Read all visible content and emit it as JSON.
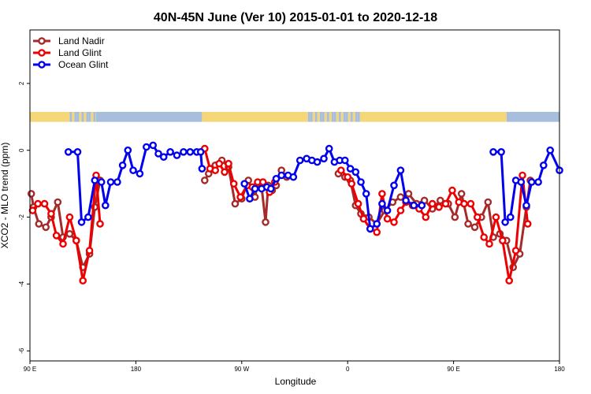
{
  "chart_data": {
    "type": "line",
    "title": "40N-45N June (Ver 10)   2015-01-01 to 2020-12-18",
    "xlabel": "Longitude",
    "ylabel": "XCO2 - MLO trend (ppm)",
    "xlim": [
      0,
      400
    ],
    "ylim": [
      -6.3,
      3.6
    ],
    "x_ticks": [
      {
        "value": 0,
        "label": "90 E"
      },
      {
        "value": 80,
        "label": "180"
      },
      {
        "value": 160,
        "label": "90 W"
      },
      {
        "value": 240,
        "label": "0"
      },
      {
        "value": 320,
        "label": "90 E"
      },
      {
        "value": 400,
        "label": "180"
      }
    ],
    "y_ticks": [
      {
        "value": 2,
        "label": "2"
      },
      {
        "value": 0,
        "label": "0"
      },
      {
        "value": -2,
        "label": "-2"
      },
      {
        "value": -4,
        "label": "-4"
      },
      {
        "value": -6,
        "label": "-6"
      }
    ],
    "legend_position": "top-left",
    "grid": false,
    "land_ocean_band": {
      "y_range": [
        0.85,
        1.15
      ],
      "land_color": "#f5d77a",
      "ocean_color": "#a7bfdc",
      "segments": [
        {
          "from": 0,
          "to": 30,
          "kind": "land"
        },
        {
          "from": 30,
          "to": 50,
          "kind": "mixed"
        },
        {
          "from": 50,
          "to": 130,
          "kind": "ocean"
        },
        {
          "from": 130,
          "to": 210,
          "kind": "land"
        },
        {
          "from": 210,
          "to": 250,
          "kind": "mixed"
        },
        {
          "from": 250,
          "to": 360,
          "kind": "land"
        },
        {
          "from": 360,
          "to": 400,
          "kind": "ocean"
        }
      ]
    },
    "series": [
      {
        "name": "Land Nadir",
        "color": "#a52a2a",
        "points": [
          [
            1,
            -1.3
          ],
          [
            2.7,
            -1.7
          ],
          [
            6.7,
            -2.2
          ],
          [
            12,
            -2.3
          ],
          [
            16,
            -2.0
          ],
          [
            21,
            -1.55
          ],
          [
            25,
            -2.6
          ],
          [
            30,
            -2.5
          ],
          [
            35,
            -2.7
          ],
          [
            40,
            -3.5
          ],
          [
            45,
            -3.1
          ],
          [
            49,
            -1.7
          ],
          [
            53,
            -0.9
          ],
          [
            132,
            -0.9
          ],
          [
            135,
            -0.7
          ],
          [
            140,
            -0.45
          ],
          [
            145,
            -0.3
          ],
          [
            150,
            -0.5
          ],
          [
            155,
            -1.6
          ],
          [
            160,
            -1.45
          ],
          [
            165,
            -0.9
          ],
          [
            170,
            -1.4
          ],
          [
            172,
            -1.0
          ],
          [
            175,
            -1.1
          ],
          [
            178,
            -2.15
          ],
          [
            180,
            -1.05
          ],
          [
            183,
            -1.2
          ],
          [
            186,
            -1.05
          ],
          [
            190,
            -0.6
          ],
          [
            194,
            -0.8
          ],
          [
            233,
            -0.7
          ],
          [
            238,
            -0.8
          ],
          [
            242,
            -0.9
          ],
          [
            246,
            -1.65
          ],
          [
            250,
            -1.9
          ],
          [
            256,
            -2.0
          ],
          [
            262,
            -2.2
          ],
          [
            268,
            -1.8
          ],
          [
            274,
            -1.55
          ],
          [
            280,
            -1.4
          ],
          [
            286,
            -1.3
          ],
          [
            292,
            -1.6
          ],
          [
            298,
            -1.5
          ],
          [
            304,
            -1.75
          ],
          [
            310,
            -1.5
          ],
          [
            316,
            -1.6
          ],
          [
            321,
            -2.0
          ],
          [
            326,
            -1.3
          ],
          [
            331,
            -2.2
          ],
          [
            336,
            -2.3
          ],
          [
            341,
            -2.0
          ],
          [
            346,
            -1.55
          ],
          [
            350,
            -2.6
          ],
          [
            355,
            -2.5
          ],
          [
            360,
            -2.7
          ],
          [
            365,
            -3.5
          ],
          [
            370,
            -3.1
          ],
          [
            375,
            -1.7
          ],
          [
            378,
            -0.9
          ]
        ]
      },
      {
        "name": "Land Glint",
        "color": "#ee0000",
        "points": [
          [
            2,
            -1.8
          ],
          [
            6,
            -1.6
          ],
          [
            11,
            -1.6
          ],
          [
            16,
            -1.9
          ],
          [
            20,
            -2.55
          ],
          [
            25,
            -2.8
          ],
          [
            30,
            -2.0
          ],
          [
            35,
            -2.7
          ],
          [
            40,
            -3.9
          ],
          [
            45,
            -3.0
          ],
          [
            50,
            -0.75
          ],
          [
            53,
            -2.2
          ],
          [
            132,
            0.05
          ],
          [
            136,
            -0.55
          ],
          [
            140,
            -0.6
          ],
          [
            143,
            -0.4
          ],
          [
            147,
            -0.65
          ],
          [
            150,
            -0.4
          ],
          [
            154,
            -1.0
          ],
          [
            159,
            -1.4
          ],
          [
            164,
            -1.05
          ],
          [
            168,
            -1.1
          ],
          [
            172,
            -0.95
          ],
          [
            176,
            -0.95
          ],
          [
            181,
            -1.25
          ],
          [
            185,
            -0.95
          ],
          [
            235,
            -0.6
          ],
          [
            240,
            -0.8
          ],
          [
            243,
            -1.0
          ],
          [
            248,
            -1.6
          ],
          [
            252,
            -2.05
          ],
          [
            257,
            -2.35
          ],
          [
            262,
            -2.45
          ],
          [
            266,
            -1.3
          ],
          [
            270,
            -2.05
          ],
          [
            275,
            -2.15
          ],
          [
            280,
            -1.8
          ],
          [
            284,
            -1.55
          ],
          [
            289,
            -1.65
          ],
          [
            294,
            -1.75
          ],
          [
            299,
            -2.0
          ],
          [
            304,
            -1.6
          ],
          [
            309,
            -1.7
          ],
          [
            314,
            -1.6
          ],
          [
            319,
            -1.2
          ],
          [
            324,
            -1.55
          ],
          [
            328,
            -1.6
          ],
          [
            333,
            -1.6
          ],
          [
            338,
            -2.0
          ],
          [
            343,
            -2.6
          ],
          [
            347,
            -2.8
          ],
          [
            352,
            -2.0
          ],
          [
            357,
            -2.7
          ],
          [
            362,
            -3.9
          ],
          [
            367,
            -3.0
          ],
          [
            372,
            -0.75
          ],
          [
            376,
            -2.2
          ]
        ]
      },
      {
        "name": "Ocean Glint",
        "color": "#0000ee",
        "points": [
          [
            29,
            -0.05
          ],
          [
            36,
            -0.05
          ],
          [
            39,
            -2.15
          ],
          [
            44,
            -2.0
          ],
          [
            49,
            -0.9
          ],
          [
            54,
            -0.95
          ],
          [
            57,
            -1.65
          ],
          [
            61,
            -0.95
          ],
          [
            66,
            -0.95
          ],
          [
            70,
            -0.45
          ],
          [
            74,
            0.0
          ],
          [
            78,
            -0.6
          ],
          [
            83,
            -0.7
          ],
          [
            88,
            0.1
          ],
          [
            93,
            0.15
          ],
          [
            97,
            -0.1
          ],
          [
            101,
            -0.2
          ],
          [
            106,
            -0.05
          ],
          [
            111,
            -0.15
          ],
          [
            116,
            -0.05
          ],
          [
            121,
            -0.05
          ],
          [
            126,
            -0.05
          ],
          [
            129,
            -0.05
          ],
          [
            130,
            -0.55
          ],
          [
            162,
            -1.0
          ],
          [
            166,
            -1.45
          ],
          [
            170,
            -1.15
          ],
          [
            175,
            -1.15
          ],
          [
            179,
            -1.1
          ],
          [
            182,
            -1.15
          ],
          [
            186,
            -0.85
          ],
          [
            190,
            -0.75
          ],
          [
            195,
            -0.75
          ],
          [
            199,
            -0.8
          ],
          [
            204,
            -0.3
          ],
          [
            209,
            -0.25
          ],
          [
            213,
            -0.3
          ],
          [
            217,
            -0.35
          ],
          [
            222,
            -0.25
          ],
          [
            226,
            0.05
          ],
          [
            230,
            -0.35
          ],
          [
            234,
            -0.3
          ],
          [
            238,
            -0.3
          ],
          [
            242,
            -0.55
          ],
          [
            246,
            -0.65
          ],
          [
            250,
            -0.95
          ],
          [
            254,
            -1.3
          ],
          [
            257,
            -2.35
          ],
          [
            262,
            -2.2
          ],
          [
            266,
            -1.6
          ],
          [
            270,
            -1.8
          ],
          [
            275,
            -1.05
          ],
          [
            280,
            -0.6
          ],
          [
            284,
            -1.5
          ],
          [
            290,
            -1.65
          ],
          [
            296,
            -1.65
          ],
          [
            350,
            -0.05
          ],
          [
            356,
            -0.05
          ],
          [
            359,
            -2.15
          ],
          [
            363,
            -2.0
          ],
          [
            367,
            -0.9
          ],
          [
            371,
            -0.95
          ],
          [
            375,
            -1.65
          ],
          [
            379,
            -0.95
          ],
          [
            384,
            -0.95
          ],
          [
            388,
            -0.45
          ],
          [
            393,
            0.0
          ],
          [
            400,
            -0.6
          ]
        ]
      }
    ]
  }
}
